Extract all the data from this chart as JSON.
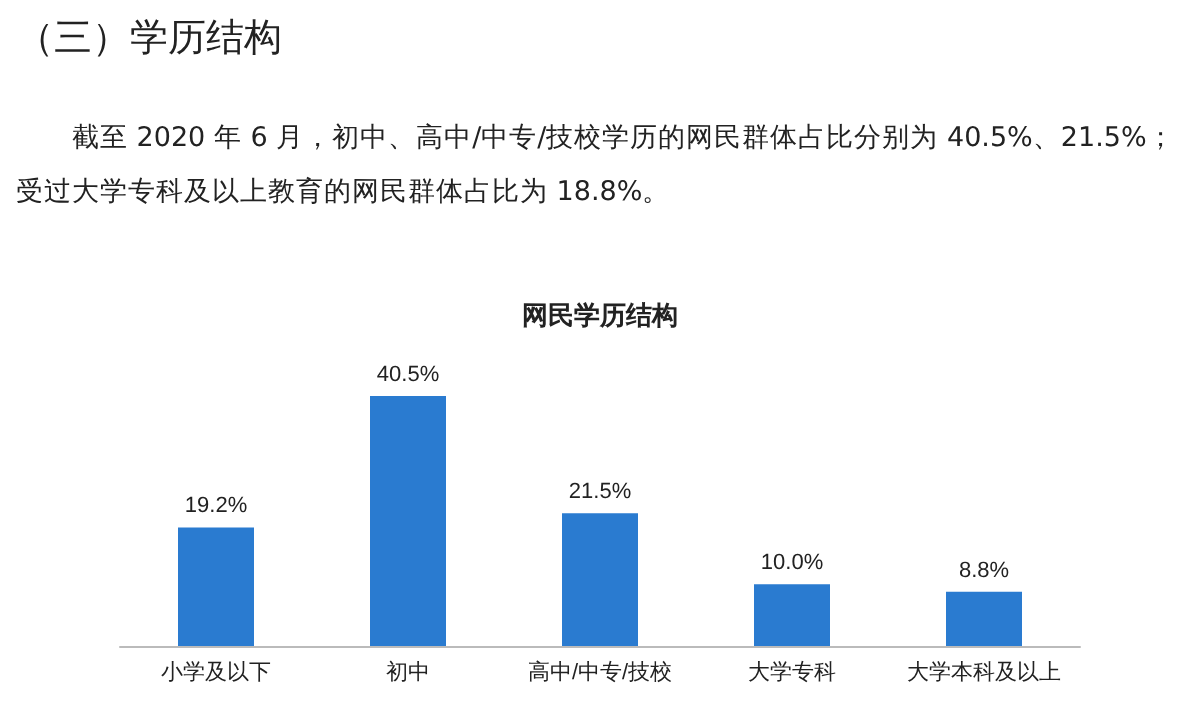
{
  "chart_data": {
    "type": "bar",
    "title": "网民学历结构",
    "annotations": [
      "（三）学历结构",
      "截至 2020 年 6 月，初中、高中/中专/技校学历的网民群体占比分别为 40.5%、21.5%；受过大学专科及以上教育的网民群体占比为 18.8%。"
    ],
    "categories": [
      "小学及以下",
      "初中",
      "高中/中专/技校",
      "大学专科",
      "大学本科及以上"
    ],
    "values": [
      19.2,
      40.5,
      21.5,
      10.0,
      8.8
    ],
    "value_labels": [
      "19.2%",
      "40.5%",
      "21.5%",
      "10.0%",
      "8.8%"
    ],
    "color": "#2a7bd0"
  }
}
